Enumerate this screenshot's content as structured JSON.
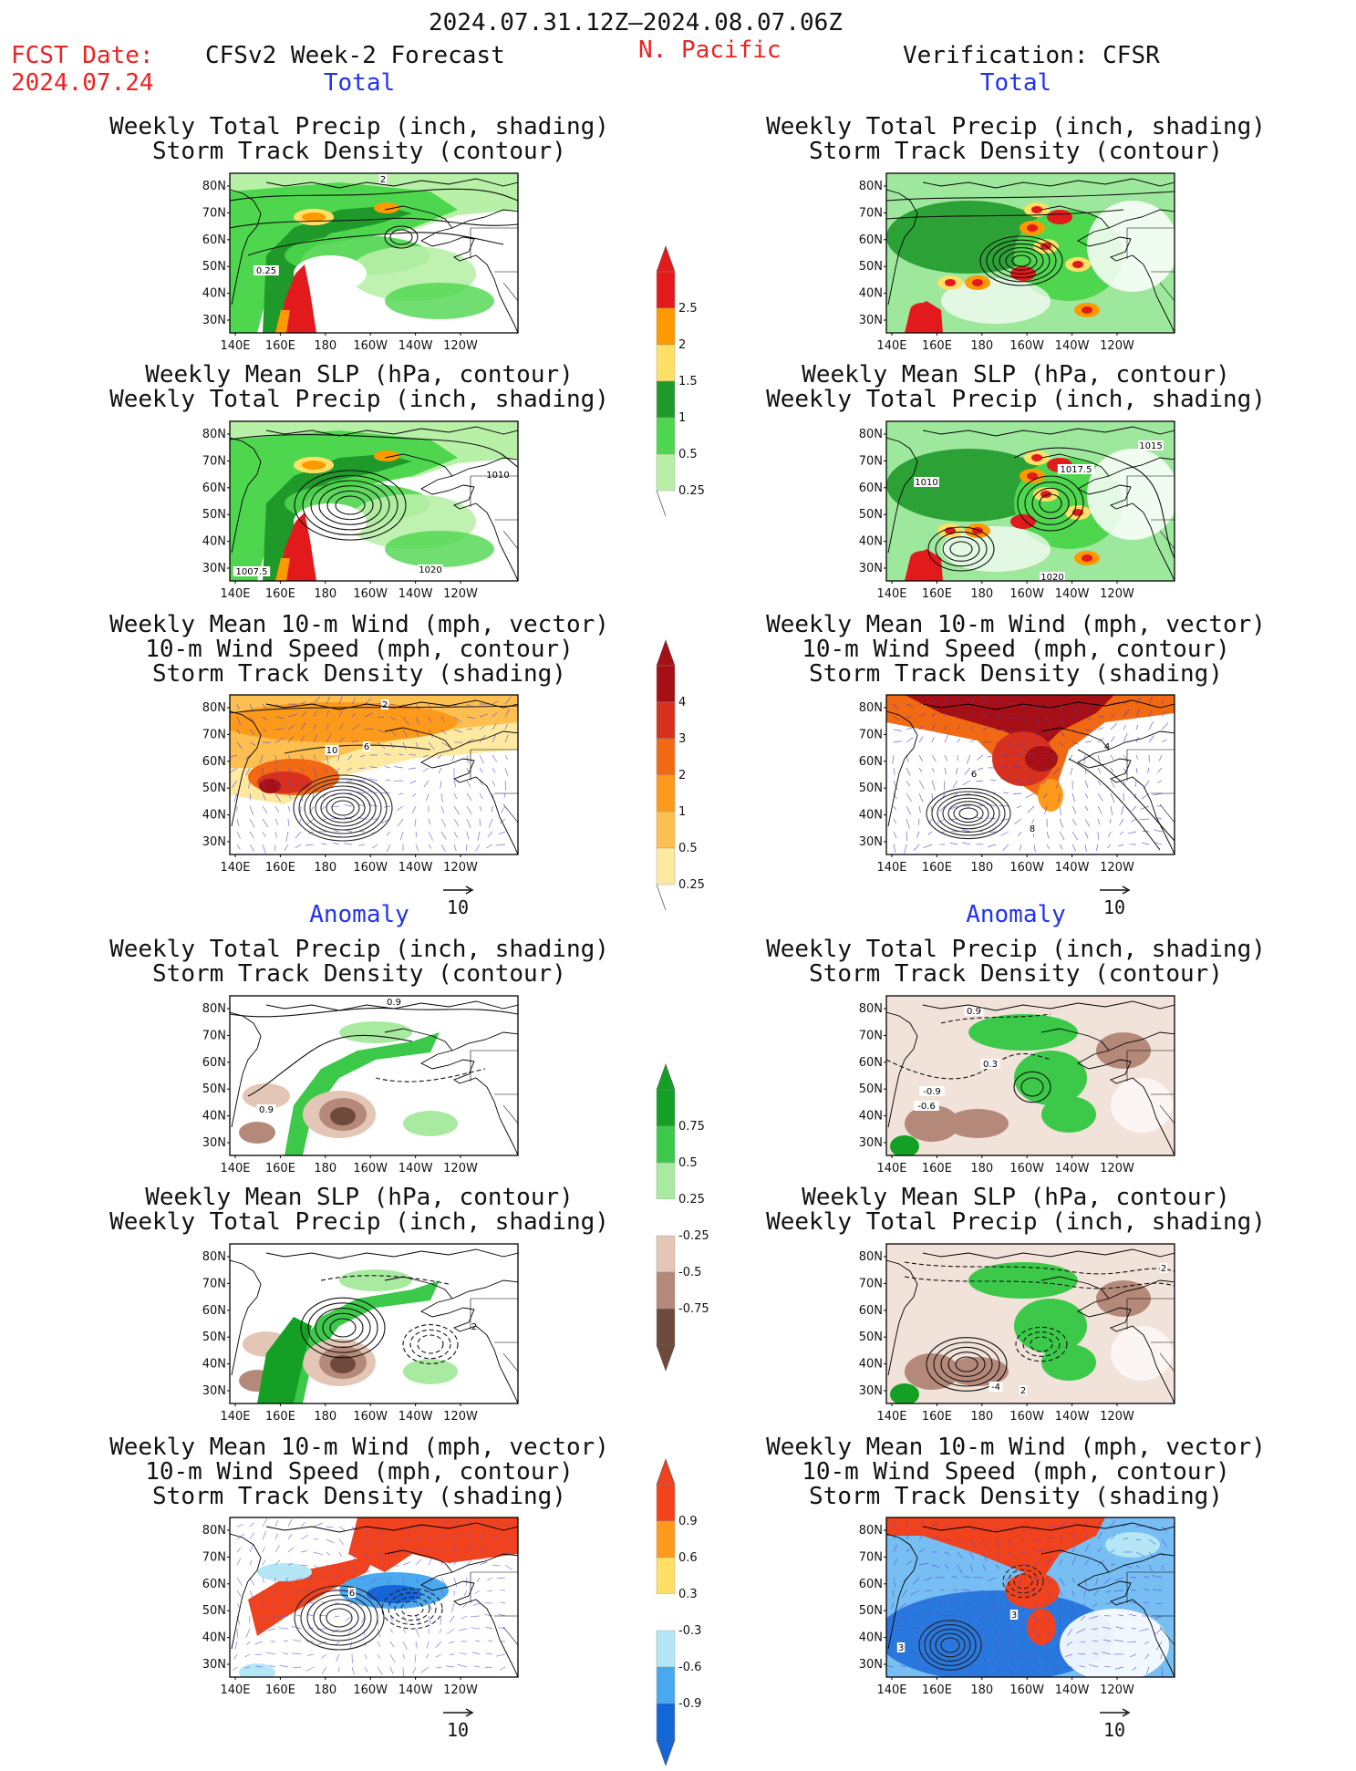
{
  "header": {
    "date_range": "2024.07.31.12Z–2024.08.07.06Z",
    "fcst_label": "FCST Date:",
    "fcst_date": "2024.07.24",
    "forecast_title": "CFSv2 Week-2 Forecast",
    "region": "N. Pacific",
    "verification_title": "Verification: CFSR"
  },
  "sections": {
    "total": "Total",
    "anomaly": "Anomaly"
  },
  "titles": {
    "precip_storm": [
      "Weekly Total Precip (inch, shading)",
      "Storm Track Density (contour)"
    ],
    "slp_precip": [
      "Weekly Mean SLP (hPa, contour)",
      "Weekly Total Precip (inch, shading)"
    ],
    "wind_storm": [
      "Weekly Mean 10-m Wind (mph, vector)",
      "10-m Wind Speed (mph, contour)",
      "Storm Track Density (shading)"
    ]
  },
  "axes": {
    "lat_ticks": [
      "80N",
      "70N",
      "60N",
      "50N",
      "40N",
      "30N"
    ],
    "lon_ticks": [
      "140E",
      "160E",
      "180",
      "160W",
      "140W",
      "120W"
    ]
  },
  "vector_reference": "10",
  "contour_labels": {
    "fc_total_precip": [
      "2",
      "0.25"
    ],
    "fc_total_slp": [
      "1010",
      "1007.5",
      "1020"
    ],
    "fc_total_wind": [
      "2",
      "10",
      "6"
    ],
    "vf_total_slp": [
      "1015",
      "1017.5",
      "1010",
      "1020"
    ],
    "vf_total_wind": [
      "6",
      "4",
      "8"
    ],
    "fc_anom_precip": [
      "0.9",
      "0.9"
    ],
    "fc_anom_slp": [
      "2"
    ],
    "fc_anom_wind": [
      "6"
    ],
    "vf_anom_precip": [
      "0.9",
      "0.3",
      "-0.9",
      "-0.6"
    ],
    "vf_anom_slp": [
      "2",
      "-4",
      "2"
    ],
    "vf_anom_wind": [
      "3",
      "3"
    ]
  },
  "colorbars": [
    {
      "name": "total-precip-colorbar",
      "labels": [
        "2.5",
        "2",
        "1.5",
        "1",
        "0.5",
        "0.25"
      ],
      "colors": [
        "#e31a1c",
        "#ff9900",
        "#ffe066",
        "#1f9a2a",
        "#4ed64e",
        "#b8f0a8"
      ]
    },
    {
      "name": "total-storm-density-colorbar",
      "labels": [
        "4",
        "3",
        "2",
        "1",
        "0.5",
        "0.25"
      ],
      "colors": [
        "#a50f15",
        "#d7301f",
        "#f16913",
        "#fd9a1c",
        "#fdbf4f",
        "#fee9a0"
      ]
    },
    {
      "name": "anomaly-precip-colorbar",
      "labels": [
        "0.75",
        "0.5",
        "0.25",
        "-0.25",
        "-0.5",
        "-0.75"
      ],
      "colors": [
        "#13a024",
        "#3cc94a",
        "#a8eaa0",
        "#ffffff",
        "#e3c6b6",
        "#b4897a",
        "#6e4a3c"
      ]
    },
    {
      "name": "anomaly-storm-density-colorbar",
      "labels": [
        "0.9",
        "0.6",
        "0.3",
        "-0.3",
        "-0.6",
        "-0.9"
      ],
      "colors": [
        "#f0421c",
        "#ff9a1c",
        "#ffe066",
        "#ffffff",
        "#b4e6f5",
        "#4aa8ee",
        "#1466d8"
      ]
    }
  ]
}
